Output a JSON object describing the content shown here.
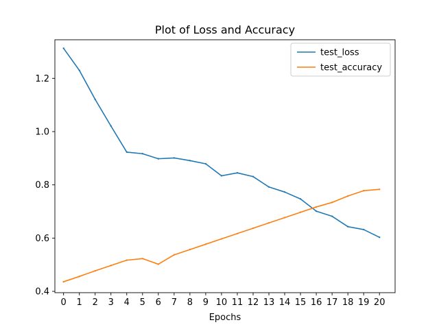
{
  "chart_data": {
    "type": "line",
    "title": "Plot of Loss and Accuracy",
    "xlabel": "Epochs",
    "ylabel": "",
    "x": [
      0,
      1,
      2,
      3,
      4,
      5,
      6,
      7,
      8,
      9,
      10,
      11,
      12,
      13,
      14,
      15,
      16,
      17,
      18,
      19,
      20
    ],
    "x_ticks": [
      "0",
      "1",
      "2",
      "3",
      "4",
      "5",
      "6",
      "7",
      "8",
      "9",
      "10",
      "11",
      "12",
      "13",
      "14",
      "15",
      "16",
      "17",
      "18",
      "19",
      "20"
    ],
    "y_ticks": [
      "0.4",
      "0.6",
      "0.8",
      "1.0",
      "1.2"
    ],
    "xlim": [
      -0.55,
      20.99
    ],
    "ylim": [
      0.395,
      1.345
    ],
    "grid": false,
    "legend_placement": "top-right",
    "series": [
      {
        "name": "test_loss",
        "color": "#1f77b4",
        "values": [
          1.313,
          1.23,
          1.121,
          1.021,
          0.923,
          0.917,
          0.898,
          0.901,
          0.891,
          0.879,
          0.834,
          0.845,
          0.831,
          0.792,
          0.773,
          0.747,
          0.701,
          0.682,
          0.643,
          0.632,
          0.603
        ]
      },
      {
        "name": "test_accuracy",
        "color": "#ff7f0e",
        "values": [
          0.436,
          0.456,
          0.477,
          0.497,
          0.517,
          0.523,
          0.502,
          0.537,
          0.557,
          0.577,
          0.597,
          0.617,
          0.637,
          0.657,
          0.677,
          0.697,
          0.717,
          0.734,
          0.758,
          0.778,
          0.783
        ]
      }
    ]
  }
}
